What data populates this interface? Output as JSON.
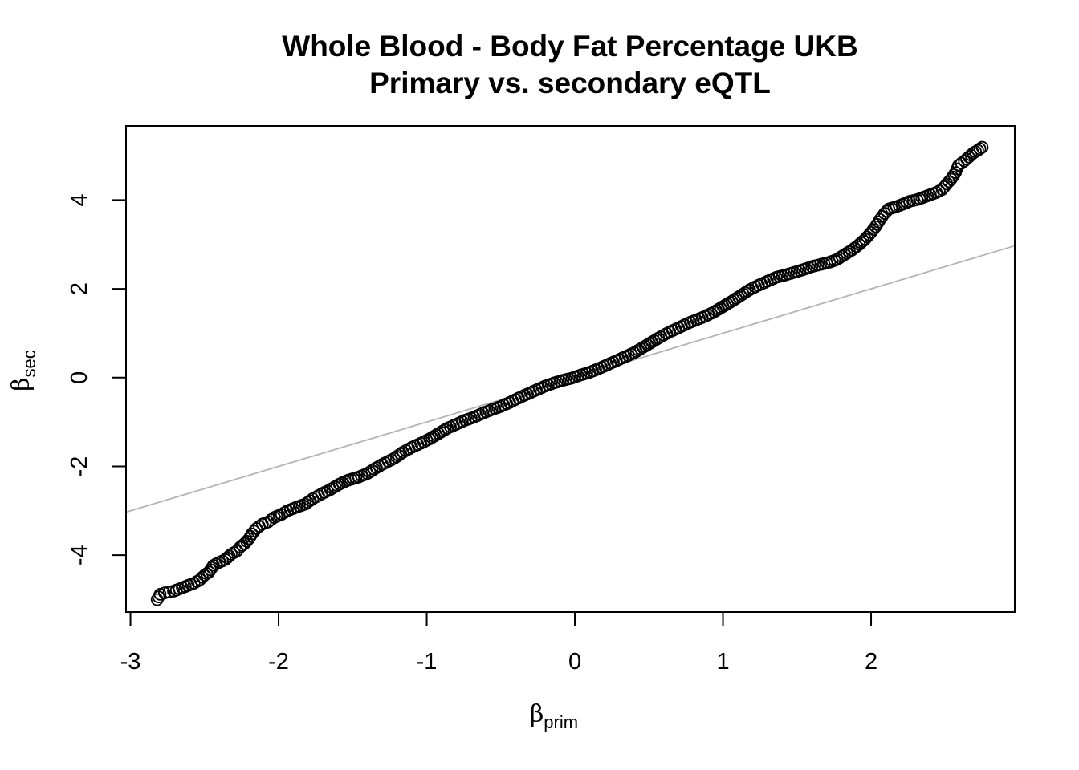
{
  "chart_data": {
    "type": "scatter",
    "title": "Whole Blood - Body Fat Percentage UKB",
    "subtitle": "Primary vs. secondary eQTL",
    "xlabel": {
      "symbol": "β",
      "subscript": "prim"
    },
    "ylabel": {
      "symbol": "β",
      "subscript": "sec"
    },
    "xlim": [
      -3.03,
      2.97
    ],
    "ylim": [
      -5.28,
      5.67
    ],
    "xticks": [
      -3,
      -2,
      -1,
      0,
      1,
      2
    ],
    "yticks": [
      -4,
      -2,
      0,
      2,
      4
    ],
    "grid": false,
    "legend": "none",
    "marker": "open-circle",
    "reference_line": {
      "intercept": 0,
      "slope": 1,
      "color": "#b3b3b3"
    },
    "point_color": "#000000",
    "series": [
      {
        "points": [
          [
            -2.82,
            -5.0
          ],
          [
            -2.8,
            -4.88
          ],
          [
            -2.77,
            -4.85
          ],
          [
            -2.74,
            -4.83
          ],
          [
            -2.71,
            -4.81
          ],
          [
            -2.67,
            -4.76
          ],
          [
            -2.61,
            -4.68
          ],
          [
            -2.57,
            -4.63
          ],
          [
            -2.53,
            -4.55
          ],
          [
            -2.5,
            -4.45
          ],
          [
            -2.47,
            -4.38
          ],
          [
            -2.44,
            -4.23
          ],
          [
            -2.4,
            -4.16
          ],
          [
            -2.36,
            -4.1
          ],
          [
            -2.32,
            -3.98
          ],
          [
            -2.28,
            -3.9
          ],
          [
            -2.26,
            -3.82
          ],
          [
            -2.23,
            -3.74
          ],
          [
            -2.2,
            -3.63
          ],
          [
            -2.18,
            -3.52
          ],
          [
            -2.15,
            -3.4
          ],
          [
            -2.11,
            -3.3
          ],
          [
            -2.07,
            -3.25
          ],
          [
            -2.03,
            -3.15
          ],
          [
            -1.98,
            -3.08
          ],
          [
            -1.94,
            -3.0
          ],
          [
            -1.88,
            -2.92
          ],
          [
            -1.82,
            -2.85
          ],
          [
            -1.77,
            -2.73
          ],
          [
            -1.71,
            -2.62
          ],
          [
            -1.65,
            -2.52
          ],
          [
            -1.59,
            -2.4
          ],
          [
            -1.53,
            -2.31
          ],
          [
            -1.46,
            -2.24
          ],
          [
            -1.4,
            -2.16
          ],
          [
            -1.34,
            -2.03
          ],
          [
            -1.28,
            -1.92
          ],
          [
            -1.22,
            -1.82
          ],
          [
            -1.16,
            -1.68
          ],
          [
            -1.1,
            -1.57
          ],
          [
            -1.04,
            -1.48
          ],
          [
            -0.98,
            -1.38
          ],
          [
            -0.92,
            -1.26
          ],
          [
            -0.86,
            -1.14
          ],
          [
            -0.8,
            -1.05
          ],
          [
            -0.74,
            -0.96
          ],
          [
            -0.68,
            -0.89
          ],
          [
            -0.62,
            -0.8
          ],
          [
            -0.56,
            -0.72
          ],
          [
            -0.5,
            -0.65
          ],
          [
            -0.44,
            -0.56
          ],
          [
            -0.38,
            -0.46
          ],
          [
            -0.32,
            -0.37
          ],
          [
            -0.26,
            -0.28
          ],
          [
            -0.2,
            -0.19
          ],
          [
            -0.14,
            -0.12
          ],
          [
            -0.08,
            -0.06
          ],
          [
            -0.02,
            -0.01
          ],
          [
            0.04,
            0.06
          ],
          [
            0.1,
            0.12
          ],
          [
            0.16,
            0.2
          ],
          [
            0.22,
            0.29
          ],
          [
            0.28,
            0.38
          ],
          [
            0.34,
            0.47
          ],
          [
            0.4,
            0.56
          ],
          [
            0.46,
            0.68
          ],
          [
            0.52,
            0.8
          ],
          [
            0.58,
            0.92
          ],
          [
            0.64,
            1.03
          ],
          [
            0.7,
            1.12
          ],
          [
            0.76,
            1.22
          ],
          [
            0.82,
            1.3
          ],
          [
            0.88,
            1.38
          ],
          [
            0.94,
            1.48
          ],
          [
            1.0,
            1.6
          ],
          [
            1.06,
            1.72
          ],
          [
            1.12,
            1.85
          ],
          [
            1.18,
            1.98
          ],
          [
            1.24,
            2.08
          ],
          [
            1.3,
            2.17
          ],
          [
            1.36,
            2.26
          ],
          [
            1.42,
            2.31
          ],
          [
            1.48,
            2.37
          ],
          [
            1.54,
            2.43
          ],
          [
            1.6,
            2.5
          ],
          [
            1.66,
            2.55
          ],
          [
            1.72,
            2.6
          ],
          [
            1.77,
            2.66
          ],
          [
            1.82,
            2.77
          ],
          [
            1.87,
            2.87
          ],
          [
            1.92,
            3.0
          ],
          [
            1.96,
            3.12
          ],
          [
            2.0,
            3.27
          ],
          [
            2.03,
            3.4
          ],
          [
            2.06,
            3.56
          ],
          [
            2.09,
            3.7
          ],
          [
            2.12,
            3.8
          ],
          [
            2.17,
            3.85
          ],
          [
            2.21,
            3.9
          ],
          [
            2.26,
            3.97
          ],
          [
            2.31,
            4.01
          ],
          [
            2.36,
            4.07
          ],
          [
            2.4,
            4.12
          ],
          [
            2.44,
            4.17
          ],
          [
            2.48,
            4.24
          ],
          [
            2.51,
            4.36
          ],
          [
            2.54,
            4.47
          ],
          [
            2.57,
            4.62
          ],
          [
            2.59,
            4.78
          ],
          [
            2.63,
            4.88
          ],
          [
            2.66,
            4.97
          ],
          [
            2.69,
            5.06
          ],
          [
            2.72,
            5.12
          ],
          [
            2.75,
            5.19
          ]
        ]
      }
    ]
  }
}
